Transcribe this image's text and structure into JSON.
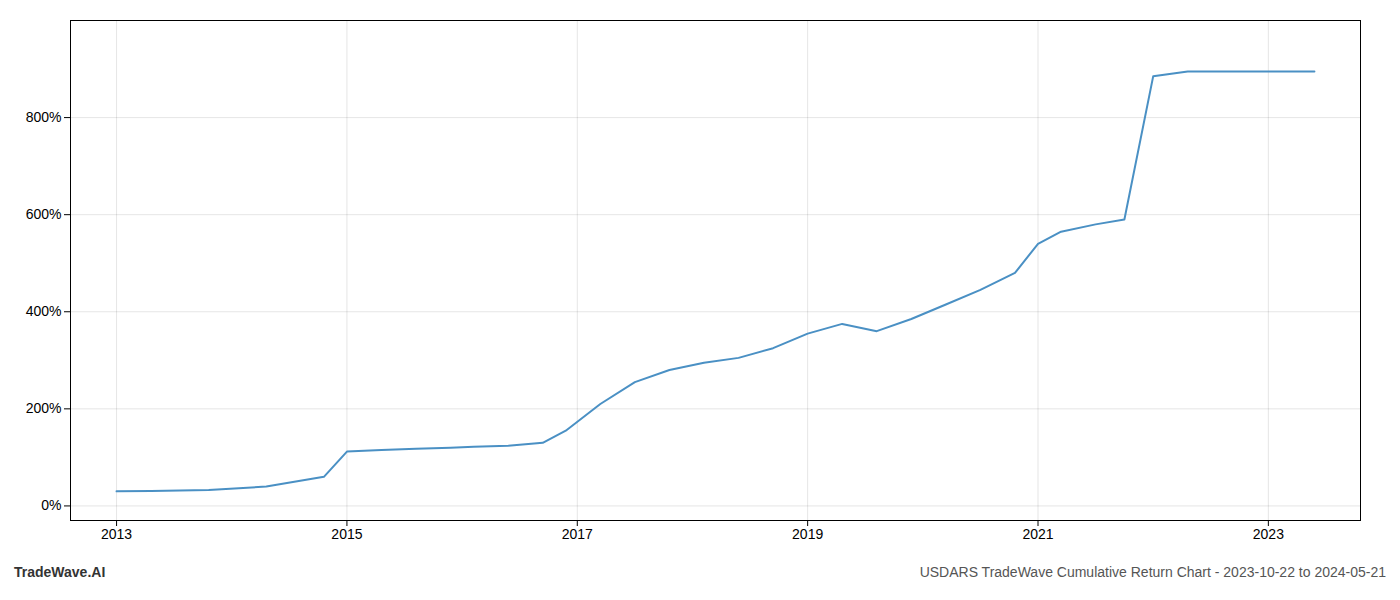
{
  "chart_data": {
    "type": "line",
    "x": [
      2013.0,
      2013.3,
      2013.8,
      2014.3,
      2014.8,
      2015.0,
      2015.3,
      2015.6,
      2015.9,
      2016.1,
      2016.4,
      2016.7,
      2016.9,
      2017.2,
      2017.5,
      2017.8,
      2018.1,
      2018.4,
      2018.7,
      2019.0,
      2019.3,
      2019.6,
      2019.9,
      2020.2,
      2020.5,
      2020.8,
      2021.0,
      2021.2,
      2021.5,
      2021.75,
      2022.0,
      2022.3,
      2022.8,
      2023.0,
      2023.4
    ],
    "values": [
      30,
      31,
      33,
      40,
      60,
      112,
      115,
      118,
      120,
      122,
      124,
      130,
      155,
      210,
      255,
      280,
      295,
      305,
      325,
      355,
      375,
      360,
      385,
      415,
      445,
      480,
      540,
      565,
      580,
      590,
      885,
      895,
      895,
      895,
      895
    ],
    "color": "#4a90c4",
    "xlim": [
      2012.6,
      2023.8
    ],
    "ylim": [
      -30,
      1000
    ],
    "xticks": [
      2013,
      2015,
      2017,
      2019,
      2021,
      2023
    ],
    "yticks": [
      {
        "value": 0,
        "label": "0%"
      },
      {
        "value": 200,
        "label": "200%"
      },
      {
        "value": 400,
        "label": "400%"
      },
      {
        "value": 600,
        "label": "600%"
      },
      {
        "value": 800,
        "label": "800%"
      }
    ],
    "grid": true,
    "annotations": [
      "TradeWave.AI",
      "USDARS TradeWave Cumulative Return Chart - 2023-10-22 to 2024-05-21"
    ]
  }
}
